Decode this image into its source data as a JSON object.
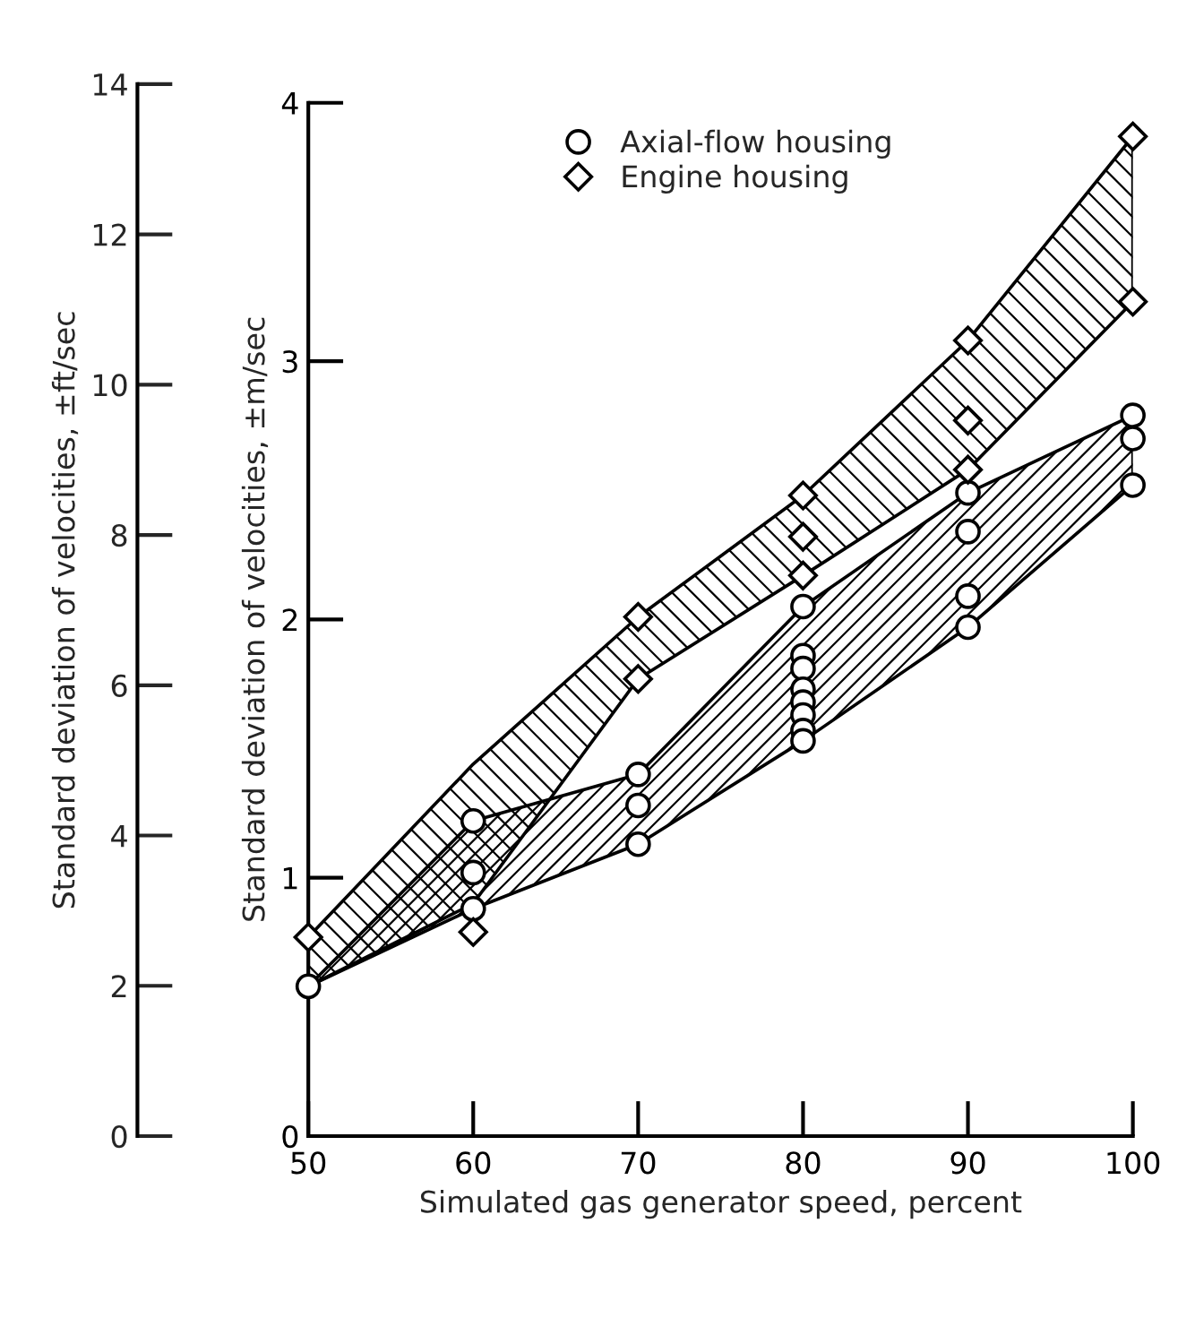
{
  "chart_data": {
    "type": "scatter",
    "xlabel": "Simulated gas generator speed, percent",
    "ylabel": "Standard deviation of velocities, ±m/sec",
    "y2label": "Standard deviation of velocities, ±ft/sec",
    "xlim": [
      50,
      100
    ],
    "xticks": [
      50,
      60,
      70,
      80,
      90,
      100
    ],
    "ylim": [
      0,
      4
    ],
    "yticks": [
      0,
      1,
      2,
      3,
      4
    ],
    "y2lim": [
      0,
      14
    ],
    "y2ticks": [
      0,
      2,
      4,
      6,
      8,
      10,
      12,
      14
    ],
    "legend": "top",
    "grid": false,
    "series": [
      {
        "type": "area",
        "color": "#000000",
        "x": [
          50,
          60,
          70,
          80,
          90,
          100
        ],
        "values": [
          null,
          null,
          null,
          null,
          null,
          null
        ],
        "lower": [
          0.58,
          0.9,
          1.77,
          2.17,
          2.58,
          3.23
        ],
        "upper": [
          0.77,
          1.44,
          2.01,
          2.48,
          3.08,
          3.87
        ]
      },
      {
        "type": "area",
        "color": "#000000",
        "x": [
          50,
          60,
          70,
          80,
          90,
          100
        ],
        "values": [
          null,
          null,
          null,
          null,
          null,
          null
        ],
        "lower": [
          0.58,
          0.88,
          1.13,
          1.53,
          1.97,
          2.52
        ],
        "upper": [
          0.58,
          1.22,
          1.4,
          2.05,
          2.49,
          2.79
        ]
      },
      {
        "type": "scatter",
        "name": "Axial-flow housing",
        "marker": "circle",
        "color": "#000000",
        "x": [
          50,
          60,
          60,
          60,
          70,
          70,
          70,
          80,
          80,
          80,
          80,
          80,
          80,
          80,
          80,
          90,
          90,
          90,
          90,
          100,
          100,
          100
        ],
        "values": [
          0.58,
          1.22,
          1.02,
          0.88,
          1.4,
          1.28,
          1.13,
          2.05,
          1.86,
          1.81,
          1.73,
          1.68,
          1.63,
          1.57,
          1.53,
          2.49,
          2.34,
          2.09,
          1.97,
          2.79,
          2.7,
          2.52
        ]
      },
      {
        "name": "Engine housing",
        "marker": "diamond",
        "color": "#000000",
        "x": [
          50,
          60,
          70,
          70,
          80,
          80,
          80,
          90,
          90,
          90,
          100,
          100
        ],
        "values": [
          0.77,
          0.79,
          2.01,
          1.77,
          2.48,
          2.32,
          2.17,
          3.08,
          2.77,
          2.58,
          3.87,
          3.23
        ]
      }
    ]
  }
}
